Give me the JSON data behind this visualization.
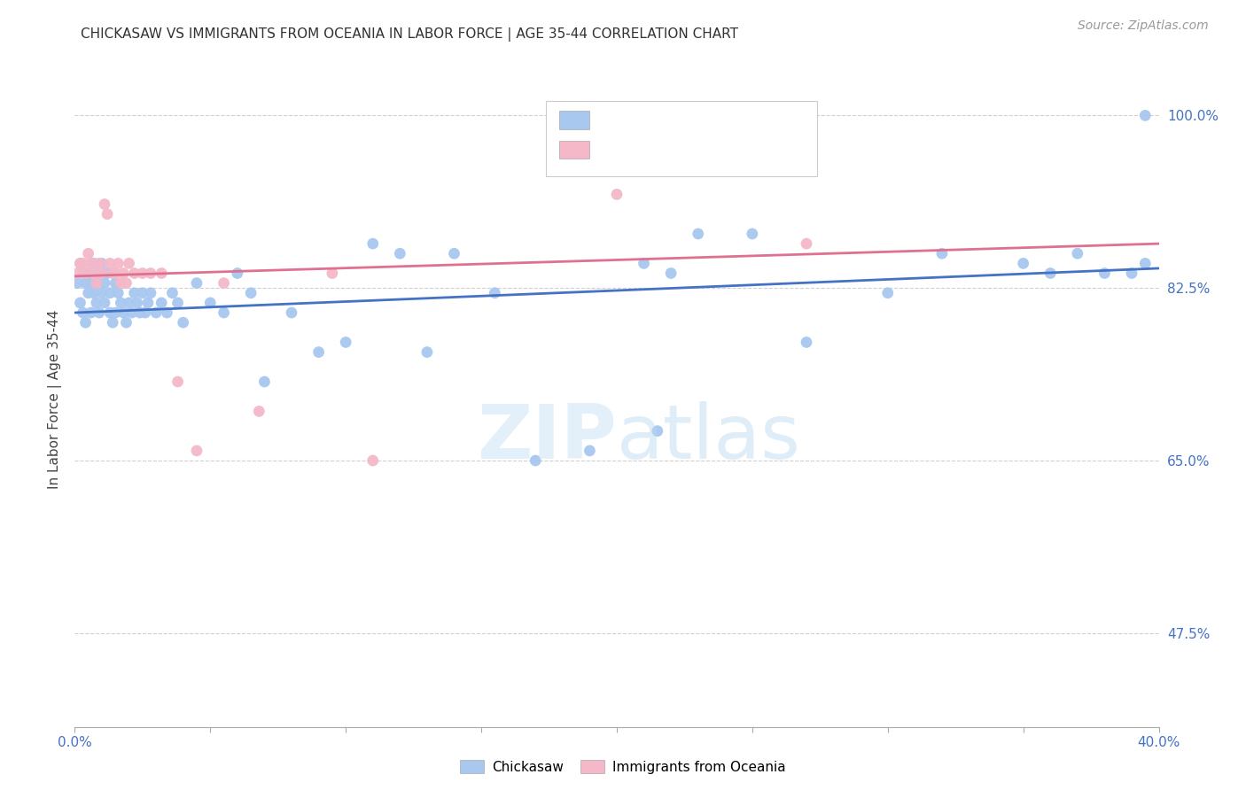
{
  "title": "CHICKASAW VS IMMIGRANTS FROM OCEANIA IN LABOR FORCE | AGE 35-44 CORRELATION CHART",
  "source": "Source: ZipAtlas.com",
  "ylabel": "In Labor Force | Age 35-44",
  "xlim": [
    0.0,
    0.4
  ],
  "ylim": [
    0.38,
    1.045
  ],
  "yticks": [
    0.475,
    0.65,
    0.825,
    1.0
  ],
  "yticklabels": [
    "47.5%",
    "65.0%",
    "82.5%",
    "100.0%"
  ],
  "xtick_positions": [
    0.0,
    0.05,
    0.1,
    0.15,
    0.2,
    0.25,
    0.3,
    0.35,
    0.4
  ],
  "blue_color": "#a8c8f0",
  "pink_color": "#f4b8c8",
  "blue_line_color": "#4472c4",
  "pink_line_color": "#e07090",
  "grid_color": "#d0d0d0",
  "tick_color": "#4472c4",
  "legend_R_color": "#4472c4",
  "blue_scatter_x": [
    0.001,
    0.002,
    0.002,
    0.003,
    0.003,
    0.004,
    0.004,
    0.005,
    0.005,
    0.006,
    0.006,
    0.007,
    0.007,
    0.008,
    0.008,
    0.009,
    0.009,
    0.01,
    0.01,
    0.011,
    0.011,
    0.012,
    0.013,
    0.013,
    0.014,
    0.015,
    0.015,
    0.016,
    0.017,
    0.018,
    0.019,
    0.02,
    0.021,
    0.022,
    0.023,
    0.024,
    0.025,
    0.026,
    0.027,
    0.028,
    0.03,
    0.032,
    0.034,
    0.036,
    0.038,
    0.04,
    0.045,
    0.05,
    0.055,
    0.06,
    0.065,
    0.07,
    0.08,
    0.09,
    0.1,
    0.11,
    0.12,
    0.13,
    0.14,
    0.155,
    0.17,
    0.19,
    0.21,
    0.215,
    0.22,
    0.23,
    0.25,
    0.27,
    0.3,
    0.32,
    0.35,
    0.36,
    0.37,
    0.38,
    0.39,
    0.395,
    0.395
  ],
  "blue_scatter_y": [
    0.83,
    0.85,
    0.81,
    0.84,
    0.8,
    0.83,
    0.79,
    0.84,
    0.82,
    0.83,
    0.8,
    0.82,
    0.85,
    0.81,
    0.83,
    0.8,
    0.84,
    0.82,
    0.85,
    0.83,
    0.81,
    0.84,
    0.8,
    0.82,
    0.79,
    0.83,
    0.8,
    0.82,
    0.81,
    0.8,
    0.79,
    0.81,
    0.8,
    0.82,
    0.81,
    0.8,
    0.82,
    0.8,
    0.81,
    0.82,
    0.8,
    0.81,
    0.8,
    0.82,
    0.81,
    0.79,
    0.83,
    0.81,
    0.8,
    0.84,
    0.82,
    0.73,
    0.8,
    0.76,
    0.77,
    0.87,
    0.86,
    0.76,
    0.86,
    0.82,
    0.65,
    0.66,
    0.85,
    0.68,
    0.84,
    0.88,
    0.88,
    0.77,
    0.82,
    0.86,
    0.85,
    0.84,
    0.86,
    0.84,
    0.84,
    0.85,
    1.0
  ],
  "pink_scatter_x": [
    0.001,
    0.002,
    0.003,
    0.004,
    0.005,
    0.006,
    0.007,
    0.008,
    0.009,
    0.01,
    0.011,
    0.012,
    0.013,
    0.014,
    0.015,
    0.016,
    0.017,
    0.018,
    0.019,
    0.02,
    0.022,
    0.025,
    0.028,
    0.032,
    0.038,
    0.045,
    0.055,
    0.068,
    0.095,
    0.11,
    0.2,
    0.27
  ],
  "pink_scatter_y": [
    0.84,
    0.85,
    0.85,
    0.84,
    0.86,
    0.85,
    0.84,
    0.83,
    0.85,
    0.84,
    0.91,
    0.9,
    0.85,
    0.84,
    0.84,
    0.85,
    0.83,
    0.84,
    0.83,
    0.85,
    0.84,
    0.84,
    0.84,
    0.84,
    0.73,
    0.66,
    0.83,
    0.7,
    0.84,
    0.65,
    0.92,
    0.87
  ],
  "blue_line_x0": 0.0,
  "blue_line_x1": 0.4,
  "blue_line_y0": 0.8,
  "blue_line_y1": 0.845,
  "pink_line_x0": 0.0,
  "pink_line_x1": 0.4,
  "pink_line_y0": 0.837,
  "pink_line_y1": 0.87
}
